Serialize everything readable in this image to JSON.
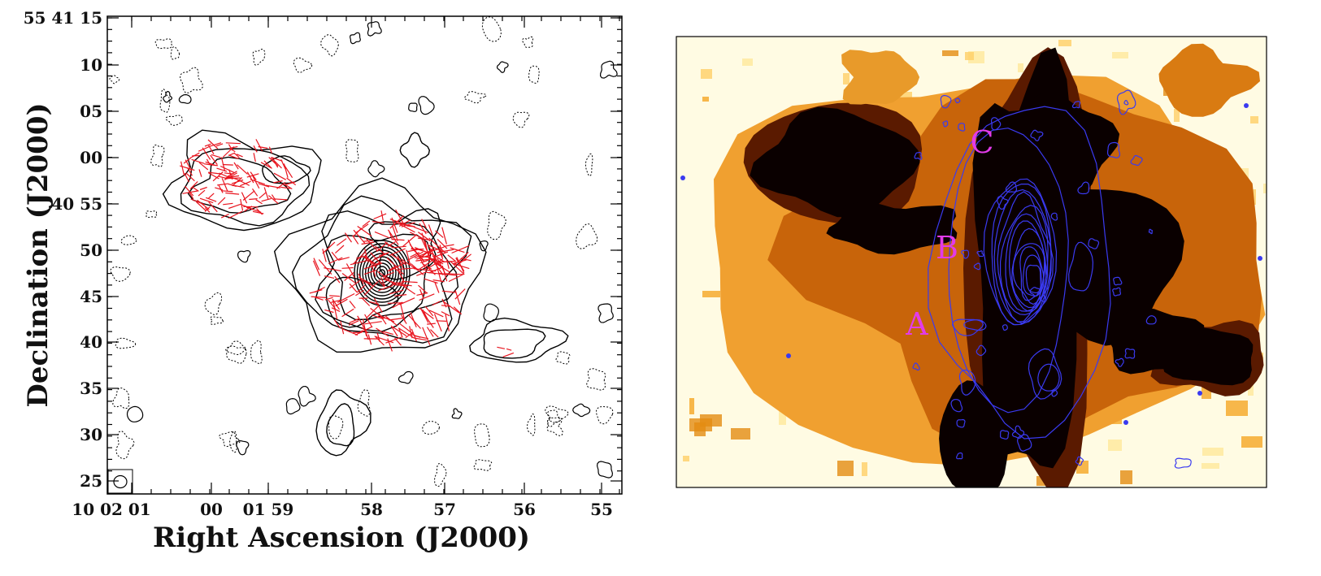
{
  "colors": {
    "contour": "#000000",
    "vector": "#e8141e",
    "overlay": "#3a3af0",
    "region_label": "#e23be8"
  },
  "chart_data": [
    {
      "type": "contour",
      "xlabel": "Right Ascension (J2000)",
      "ylabel": "Declination (J2000)",
      "x_ticks": [
        "10 02 01",
        "00",
        "01 59",
        "58",
        "57",
        "56",
        "55"
      ],
      "y_ticks": [
        "55 41 15",
        "10",
        "05",
        "00",
        "40 55",
        "50",
        "45",
        "40",
        "35",
        "30",
        "25"
      ],
      "grid": false,
      "beam_marker": "bottom-left",
      "layers": [
        "contours",
        "polarization vectors"
      ]
    },
    {
      "type": "heatmap",
      "colormap": "afmhot-reversed",
      "overlay": "contours",
      "regions": [
        {
          "label": "A"
        },
        {
          "label": "B"
        },
        {
          "label": "C"
        }
      ]
    }
  ]
}
